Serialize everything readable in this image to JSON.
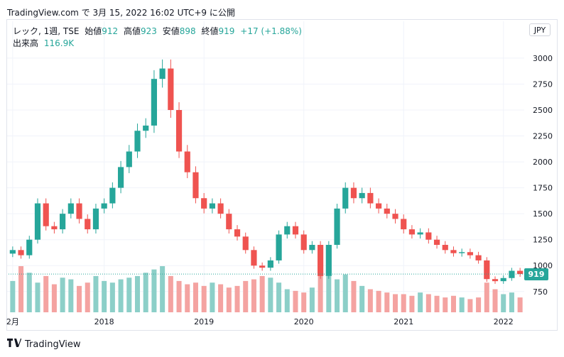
{
  "caption": "TradingView.com で 3月 15, 2022 16:02 UTC+9 に公開",
  "legend": {
    "symbol": "レック, 1週, TSE",
    "open_label": "始値",
    "open": "912",
    "high_label": "高値",
    "high": "923",
    "low_label": "安値",
    "low": "898",
    "close_label": "終値",
    "close": "919",
    "change": "+17 (+1.88%)",
    "volume_label": "出来高",
    "volume": "116.9K"
  },
  "currency": "JPY",
  "last_price_label": "919",
  "footer": {
    "brand": "TradingView",
    "logo_icon": "tradingview-logo-icon"
  },
  "colors": {
    "up": "#26a69a",
    "down": "#ef5350",
    "vol_up": "#8ccfc8",
    "vol_down": "#f4a3a1",
    "grid": "#f0f3fa"
  },
  "chart_data": {
    "type": "candlestick",
    "interval": "weekly",
    "y_axis_ticks": [
      "750",
      "1000",
      "1250",
      "1500",
      "1750",
      "2000",
      "2250",
      "2500",
      "2750",
      "3000"
    ],
    "x_axis_ticks": [
      "2月",
      "2018",
      "2019",
      "2020",
      "2021",
      "2022"
    ],
    "ylim": [
      550,
      3150
    ],
    "x": [
      "2017-02",
      "2017-03",
      "2017-04",
      "2017-05",
      "2017-06",
      "2017-07",
      "2017-08",
      "2017-09",
      "2017-10",
      "2017-11",
      "2017-12",
      "2018-01",
      "2018-02",
      "2018-03",
      "2018-04",
      "2018-05",
      "2018-06",
      "2018-07",
      "2018-08",
      "2018-09",
      "2018-10",
      "2018-11",
      "2018-12",
      "2019-01",
      "2019-02",
      "2019-03",
      "2019-04",
      "2019-05",
      "2019-06",
      "2019-07",
      "2019-08",
      "2019-09",
      "2019-10",
      "2019-11",
      "2019-12",
      "2020-01",
      "2020-02",
      "2020-03",
      "2020-04",
      "2020-05",
      "2020-06",
      "2020-07",
      "2020-08",
      "2020-09",
      "2020-10",
      "2020-11",
      "2020-12",
      "2021-01",
      "2021-02",
      "2021-03",
      "2021-04",
      "2021-05",
      "2021-06",
      "2021-07",
      "2021-08",
      "2021-09",
      "2021-10",
      "2021-11",
      "2021-12",
      "2022-01",
      "2022-02",
      "2022-03"
    ],
    "close": [
      1150,
      1100,
      1250,
      1600,
      1380,
      1350,
      1500,
      1600,
      1450,
      1350,
      1550,
      1600,
      1750,
      1950,
      2100,
      2300,
      2350,
      2800,
      2900,
      2500,
      2100,
      1900,
      1650,
      1550,
      1600,
      1500,
      1350,
      1280,
      1150,
      1000,
      980,
      1050,
      1300,
      1380,
      1300,
      1150,
      1200,
      900,
      1200,
      1550,
      1750,
      1650,
      1700,
      1600,
      1550,
      1500,
      1450,
      1350,
      1300,
      1320,
      1250,
      1200,
      1150,
      1120,
      1130,
      1100,
      1050,
      870,
      850,
      880,
      950,
      919
    ],
    "volume": [
      95,
      140,
      120,
      90,
      110,
      85,
      105,
      100,
      80,
      90,
      110,
      95,
      90,
      100,
      105,
      110,
      120,
      130,
      140,
      110,
      95,
      85,
      90,
      80,
      90,
      85,
      75,
      80,
      95,
      100,
      110,
      105,
      90,
      70,
      65,
      60,
      75,
      130,
      110,
      100,
      115,
      95,
      80,
      70,
      65,
      60,
      55,
      55,
      50,
      60,
      55,
      50,
      45,
      50,
      45,
      40,
      45,
      90,
      70,
      55,
      60,
      45
    ]
  }
}
